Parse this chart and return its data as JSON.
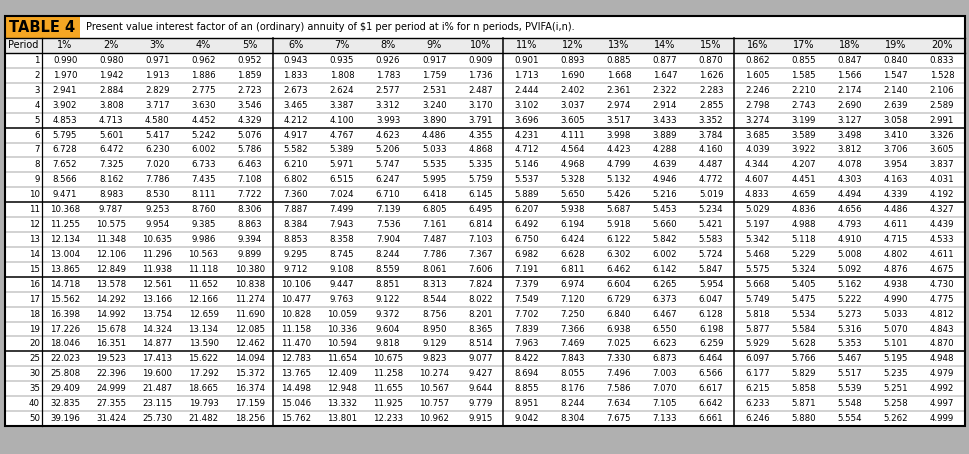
{
  "title": "TABLE 4",
  "subtitle": "Present value interest factor of an (ordinary) annuity of $1 per period at i% for n periods, PVIFA(i,n).",
  "columns": [
    "Period",
    "1%",
    "2%",
    "3%",
    "4%",
    "5%",
    "6%",
    "7%",
    "8%",
    "9%",
    "10%",
    "11%",
    "12%",
    "13%",
    "14%",
    "15%",
    "16%",
    "17%",
    "18%",
    "19%",
    "20%"
  ],
  "rows": [
    [
      1,
      0.99,
      0.98,
      0.971,
      0.962,
      0.952,
      0.943,
      0.935,
      0.926,
      0.917,
      0.909,
      0.901,
      0.893,
      0.885,
      0.877,
      0.87,
      0.862,
      0.855,
      0.847,
      0.84,
      0.833
    ],
    [
      2,
      1.97,
      1.942,
      1.913,
      1.886,
      1.859,
      1.833,
      1.808,
      1.783,
      1.759,
      1.736,
      1.713,
      1.69,
      1.668,
      1.647,
      1.626,
      1.605,
      1.585,
      1.566,
      1.547,
      1.528
    ],
    [
      3,
      2.941,
      2.884,
      2.829,
      2.775,
      2.723,
      2.673,
      2.624,
      2.577,
      2.531,
      2.487,
      2.444,
      2.402,
      2.361,
      2.322,
      2.283,
      2.246,
      2.21,
      2.174,
      2.14,
      2.106
    ],
    [
      4,
      3.902,
      3.808,
      3.717,
      3.63,
      3.546,
      3.465,
      3.387,
      3.312,
      3.24,
      3.17,
      3.102,
      3.037,
      2.974,
      2.914,
      2.855,
      2.798,
      2.743,
      2.69,
      2.639,
      2.589
    ],
    [
      5,
      4.853,
      4.713,
      4.58,
      4.452,
      4.329,
      4.212,
      4.1,
      3.993,
      3.89,
      3.791,
      3.696,
      3.605,
      3.517,
      3.433,
      3.352,
      3.274,
      3.199,
      3.127,
      3.058,
      2.991
    ],
    [
      6,
      5.795,
      5.601,
      5.417,
      5.242,
      5.076,
      4.917,
      4.767,
      4.623,
      4.486,
      4.355,
      4.231,
      4.111,
      3.998,
      3.889,
      3.784,
      3.685,
      3.589,
      3.498,
      3.41,
      3.326
    ],
    [
      7,
      6.728,
      6.472,
      6.23,
      6.002,
      5.786,
      5.582,
      5.389,
      5.206,
      5.033,
      4.868,
      4.712,
      4.564,
      4.423,
      4.288,
      4.16,
      4.039,
      3.922,
      3.812,
      3.706,
      3.605
    ],
    [
      8,
      7.652,
      7.325,
      7.02,
      6.733,
      6.463,
      6.21,
      5.971,
      5.747,
      5.535,
      5.335,
      5.146,
      4.968,
      4.799,
      4.639,
      4.487,
      4.344,
      4.207,
      4.078,
      3.954,
      3.837
    ],
    [
      9,
      8.566,
      8.162,
      7.786,
      7.435,
      7.108,
      6.802,
      6.515,
      6.247,
      5.995,
      5.759,
      5.537,
      5.328,
      5.132,
      4.946,
      4.772,
      4.607,
      4.451,
      4.303,
      4.163,
      4.031
    ],
    [
      10,
      9.471,
      8.983,
      8.53,
      8.111,
      7.722,
      7.36,
      7.024,
      6.71,
      6.418,
      6.145,
      5.889,
      5.65,
      5.426,
      5.216,
      5.019,
      4.833,
      4.659,
      4.494,
      4.339,
      4.192
    ],
    [
      11,
      10.368,
      9.787,
      9.253,
      8.76,
      8.306,
      7.887,
      7.499,
      7.139,
      6.805,
      6.495,
      6.207,
      5.938,
      5.687,
      5.453,
      5.234,
      5.029,
      4.836,
      4.656,
      4.486,
      4.327
    ],
    [
      12,
      11.255,
      10.575,
      9.954,
      9.385,
      8.863,
      8.384,
      7.943,
      7.536,
      7.161,
      6.814,
      6.492,
      6.194,
      5.918,
      5.66,
      5.421,
      5.197,
      4.988,
      4.793,
      4.611,
      4.439
    ],
    [
      13,
      12.134,
      11.348,
      10.635,
      9.986,
      9.394,
      8.853,
      8.358,
      7.904,
      7.487,
      7.103,
      6.75,
      6.424,
      6.122,
      5.842,
      5.583,
      5.342,
      5.118,
      4.91,
      4.715,
      4.533
    ],
    [
      14,
      13.004,
      12.106,
      11.296,
      10.563,
      9.899,
      9.295,
      8.745,
      8.244,
      7.786,
      7.367,
      6.982,
      6.628,
      6.302,
      6.002,
      5.724,
      5.468,
      5.229,
      5.008,
      4.802,
      4.611
    ],
    [
      15,
      13.865,
      12.849,
      11.938,
      11.118,
      10.38,
      9.712,
      9.108,
      8.559,
      8.061,
      7.606,
      7.191,
      6.811,
      6.462,
      6.142,
      5.847,
      5.575,
      5.324,
      5.092,
      4.876,
      4.675
    ],
    [
      16,
      14.718,
      13.578,
      12.561,
      11.652,
      10.838,
      10.106,
      9.447,
      8.851,
      8.313,
      7.824,
      7.379,
      6.974,
      6.604,
      6.265,
      5.954,
      5.668,
      5.405,
      5.162,
      4.938,
      4.73
    ],
    [
      17,
      15.562,
      14.292,
      13.166,
      12.166,
      11.274,
      10.477,
      9.763,
      9.122,
      8.544,
      8.022,
      7.549,
      7.12,
      6.729,
      6.373,
      6.047,
      5.749,
      5.475,
      5.222,
      4.99,
      4.775
    ],
    [
      18,
      16.398,
      14.992,
      13.754,
      12.659,
      11.69,
      10.828,
      10.059,
      9.372,
      8.756,
      8.201,
      7.702,
      7.25,
      6.84,
      6.467,
      6.128,
      5.818,
      5.534,
      5.273,
      5.033,
      4.812
    ],
    [
      19,
      17.226,
      15.678,
      14.324,
      13.134,
      12.085,
      11.158,
      10.336,
      9.604,
      8.95,
      8.365,
      7.839,
      7.366,
      6.938,
      6.55,
      6.198,
      5.877,
      5.584,
      5.316,
      5.07,
      4.843
    ],
    [
      20,
      18.046,
      16.351,
      14.877,
      13.59,
      12.462,
      11.47,
      10.594,
      9.818,
      9.129,
      8.514,
      7.963,
      7.469,
      7.025,
      6.623,
      6.259,
      5.929,
      5.628,
      5.353,
      5.101,
      4.87
    ],
    [
      25,
      22.023,
      19.523,
      17.413,
      15.622,
      14.094,
      12.783,
      11.654,
      10.675,
      9.823,
      9.077,
      8.422,
      7.843,
      7.33,
      6.873,
      6.464,
      6.097,
      5.766,
      5.467,
      5.195,
      4.948
    ],
    [
      30,
      25.808,
      22.396,
      19.6,
      17.292,
      15.372,
      13.765,
      12.409,
      11.258,
      10.274,
      9.427,
      8.694,
      8.055,
      7.496,
      7.003,
      6.566,
      6.177,
      5.829,
      5.517,
      5.235,
      4.979
    ],
    [
      35,
      29.409,
      24.999,
      21.487,
      18.665,
      16.374,
      14.498,
      12.948,
      11.655,
      10.567,
      9.644,
      8.855,
      8.176,
      7.586,
      7.07,
      6.617,
      6.215,
      5.858,
      5.539,
      5.251,
      4.992
    ],
    [
      40,
      32.835,
      27.355,
      23.115,
      19.793,
      17.159,
      15.046,
      13.332,
      11.925,
      10.757,
      9.779,
      8.951,
      8.244,
      7.634,
      7.105,
      6.642,
      6.233,
      5.871,
      5.548,
      5.258,
      4.997
    ],
    [
      50,
      39.196,
      31.424,
      25.73,
      21.482,
      18.256,
      15.762,
      13.801,
      12.233,
      10.962,
      9.915,
      9.042,
      8.304,
      7.675,
      7.133,
      6.661,
      6.246,
      5.88,
      5.554,
      5.262,
      4.999
    ]
  ],
  "group_borders_after_row": [
    4,
    9,
    14,
    19
  ],
  "title_box_color": "#F5A623",
  "bg_color": "#B0B0B0",
  "table_bg": "#FFFFFF",
  "cell_fontsize": 6.2,
  "header_fontsize": 7.0,
  "title_fontsize": 10.5
}
